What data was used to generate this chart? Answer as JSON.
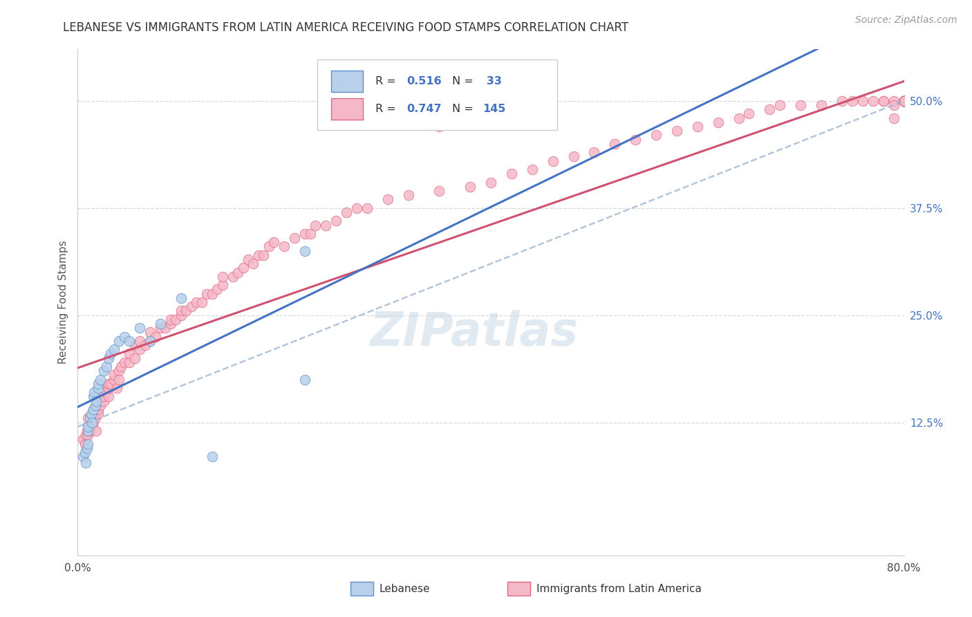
{
  "title": "LEBANESE VS IMMIGRANTS FROM LATIN AMERICA RECEIVING FOOD STAMPS CORRELATION CHART",
  "source": "Source: ZipAtlas.com",
  "ylabel": "Receiving Food Stamps",
  "xlim": [
    0.0,
    0.8
  ],
  "ylim": [
    -0.03,
    0.56
  ],
  "xtick_positions": [
    0.0,
    0.1,
    0.2,
    0.3,
    0.4,
    0.5,
    0.6,
    0.7,
    0.8
  ],
  "xtick_labels": [
    "0.0%",
    "",
    "",
    "",
    "",
    "",
    "",
    "",
    "80.0%"
  ],
  "yticks_right": [
    0.125,
    0.25,
    0.375,
    0.5
  ],
  "ytick_labels_right": [
    "12.5%",
    "25.0%",
    "37.5%",
    "50.0%"
  ],
  "legend_blue_r": "0.516",
  "legend_blue_n": "33",
  "legend_pink_r": "0.747",
  "legend_pink_n": "145",
  "legend_label_blue": "Lebanese",
  "legend_label_pink": "Immigrants from Latin America",
  "blue_fill": "#b8d0ea",
  "blue_edge": "#6090c8",
  "pink_fill": "#f5b8c8",
  "pink_edge": "#e06880",
  "blue_line_color": "#4472c4",
  "pink_line_color": "#d05070",
  "dashed_line_color": "#a0b8d0",
  "grid_color": "#d8d8d8",
  "watermark_color": "#c5d5e5",
  "watermark_alpha": 0.5,
  "background_color": "#ffffff",
  "title_fontsize": 12,
  "tick_fontsize": 11,
  "label_fontsize": 11,
  "source_fontsize": 10,
  "blue_x": [
    0.005,
    0.007,
    0.008,
    0.009,
    0.01,
    0.01,
    0.01,
    0.012,
    0.013,
    0.014,
    0.015,
    0.015,
    0.016,
    0.017,
    0.018,
    0.02,
    0.02,
    0.022,
    0.025,
    0.028,
    0.03,
    0.032,
    0.035,
    0.04,
    0.045,
    0.05,
    0.06,
    0.07,
    0.08,
    0.1,
    0.13,
    0.22,
    0.22
  ],
  "blue_y": [
    0.085,
    0.09,
    0.078,
    0.095,
    0.1,
    0.115,
    0.12,
    0.13,
    0.135,
    0.125,
    0.14,
    0.155,
    0.16,
    0.145,
    0.15,
    0.165,
    0.17,
    0.175,
    0.185,
    0.19,
    0.2,
    0.205,
    0.21,
    0.22,
    0.225,
    0.22,
    0.235,
    0.22,
    0.24,
    0.27,
    0.085,
    0.175,
    0.325
  ],
  "pink_x": [
    0.005,
    0.007,
    0.008,
    0.009,
    0.01,
    0.01,
    0.01,
    0.012,
    0.013,
    0.015,
    0.015,
    0.015,
    0.017,
    0.018,
    0.02,
    0.02,
    0.022,
    0.025,
    0.025,
    0.028,
    0.03,
    0.03,
    0.03,
    0.032,
    0.035,
    0.035,
    0.038,
    0.04,
    0.04,
    0.042,
    0.045,
    0.05,
    0.05,
    0.055,
    0.055,
    0.06,
    0.06,
    0.065,
    0.07,
    0.07,
    0.075,
    0.08,
    0.085,
    0.09,
    0.09,
    0.095,
    0.1,
    0.1,
    0.105,
    0.11,
    0.115,
    0.12,
    0.125,
    0.13,
    0.135,
    0.14,
    0.14,
    0.15,
    0.155,
    0.16,
    0.165,
    0.17,
    0.175,
    0.18,
    0.185,
    0.19,
    0.2,
    0.21,
    0.22,
    0.225,
    0.23,
    0.24,
    0.25,
    0.26,
    0.27,
    0.28,
    0.3,
    0.32,
    0.35,
    0.35,
    0.38,
    0.4,
    0.42,
    0.44,
    0.46,
    0.48,
    0.5,
    0.52,
    0.54,
    0.56,
    0.58,
    0.6,
    0.62,
    0.64,
    0.65,
    0.67,
    0.68,
    0.7,
    0.72,
    0.74,
    0.75,
    0.76,
    0.77,
    0.78,
    0.78,
    0.79,
    0.79,
    0.79,
    0.8,
    0.8,
    0.8,
    0.8,
    0.8,
    0.8,
    0.8,
    0.8,
    0.8,
    0.8,
    0.8,
    0.8,
    0.8,
    0.8,
    0.8,
    0.8,
    0.8,
    0.8,
    0.8,
    0.8,
    0.8,
    0.8,
    0.8,
    0.8,
    0.8,
    0.8,
    0.8,
    0.8,
    0.8,
    0.8,
    0.8,
    0.8,
    0.8,
    0.8
  ],
  "pink_y": [
    0.105,
    0.1,
    0.11,
    0.115,
    0.12,
    0.13,
    0.11,
    0.115,
    0.12,
    0.13,
    0.125,
    0.14,
    0.13,
    0.115,
    0.135,
    0.14,
    0.145,
    0.15,
    0.155,
    0.16,
    0.155,
    0.165,
    0.17,
    0.17,
    0.175,
    0.18,
    0.165,
    0.185,
    0.175,
    0.19,
    0.195,
    0.195,
    0.205,
    0.2,
    0.215,
    0.21,
    0.22,
    0.215,
    0.22,
    0.23,
    0.225,
    0.235,
    0.235,
    0.24,
    0.245,
    0.245,
    0.25,
    0.255,
    0.255,
    0.26,
    0.265,
    0.265,
    0.275,
    0.275,
    0.28,
    0.285,
    0.295,
    0.295,
    0.3,
    0.305,
    0.315,
    0.31,
    0.32,
    0.32,
    0.33,
    0.335,
    0.33,
    0.34,
    0.345,
    0.345,
    0.355,
    0.355,
    0.36,
    0.37,
    0.375,
    0.375,
    0.385,
    0.39,
    0.395,
    0.47,
    0.4,
    0.405,
    0.415,
    0.42,
    0.43,
    0.435,
    0.44,
    0.45,
    0.455,
    0.46,
    0.465,
    0.47,
    0.475,
    0.48,
    0.485,
    0.49,
    0.495,
    0.495,
    0.495,
    0.5,
    0.5,
    0.5,
    0.5,
    0.5,
    0.5,
    0.5,
    0.48,
    0.495,
    0.5,
    0.5,
    0.5,
    0.5,
    0.5,
    0.5,
    0.5,
    0.5,
    0.5,
    0.5,
    0.5,
    0.5,
    0.5,
    0.5,
    0.5,
    0.5,
    0.5,
    0.5,
    0.5,
    0.5,
    0.5,
    0.5,
    0.5,
    0.5,
    0.5,
    0.5,
    0.5,
    0.5,
    0.5,
    0.5,
    0.5,
    0.5,
    0.5,
    0.5
  ]
}
